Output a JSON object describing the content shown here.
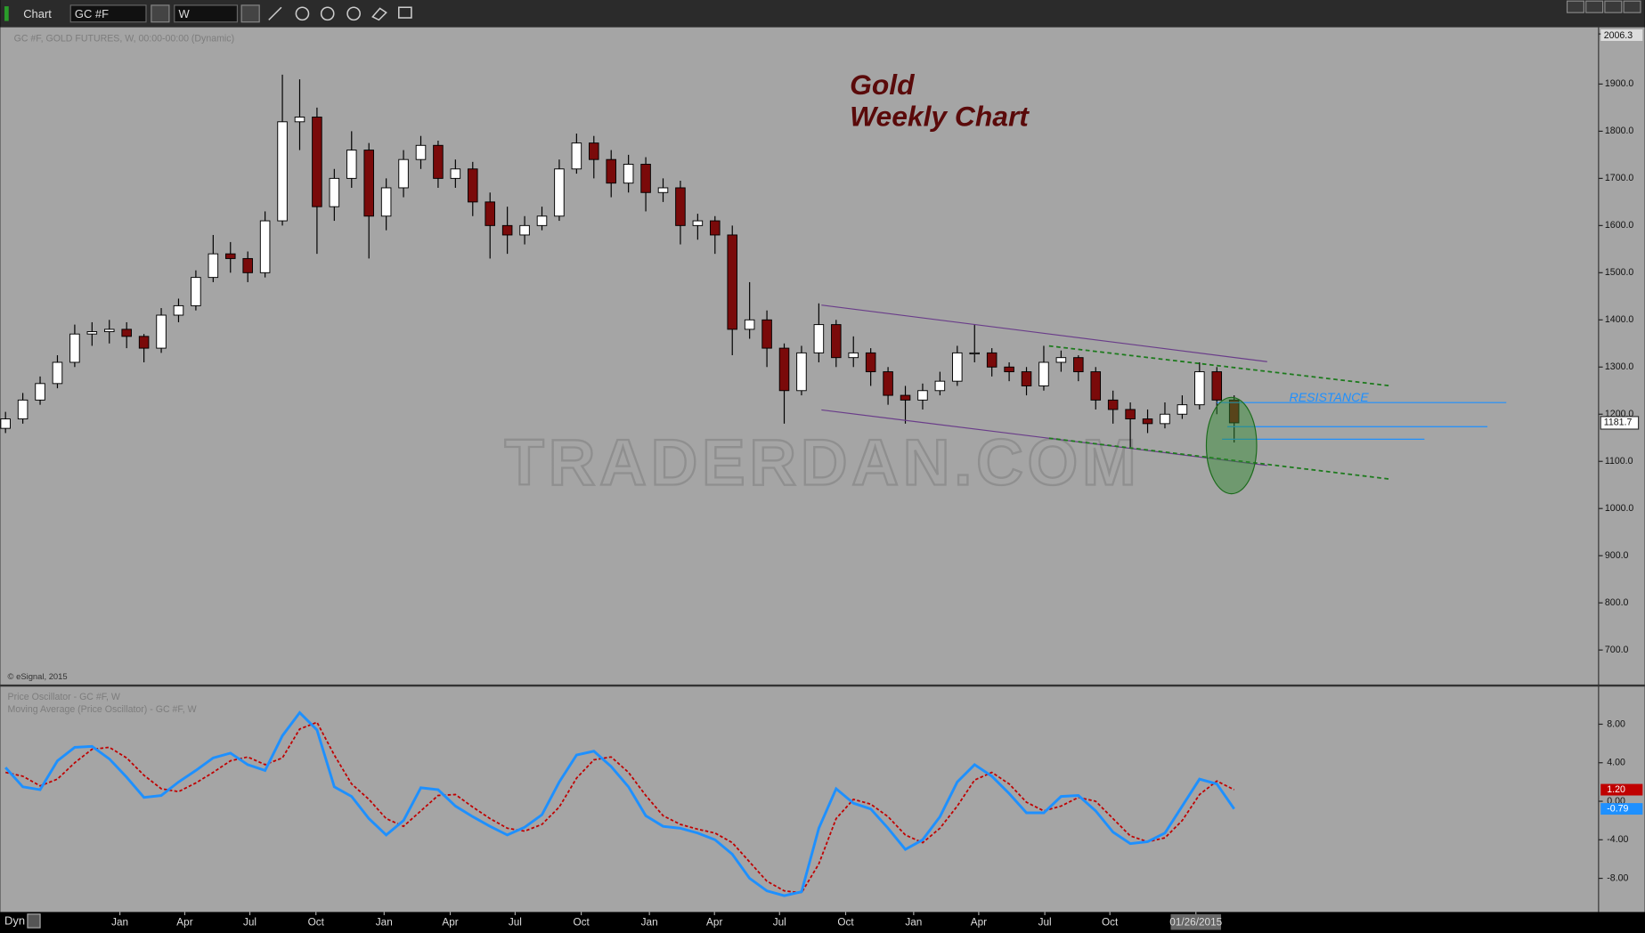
{
  "toolbar": {
    "title": "Chart",
    "symbol": "GC #F",
    "interval": "W"
  },
  "status": {
    "mode": "Dyn"
  },
  "chart_data": [
    {
      "type": "candlestick",
      "title": "Gold",
      "subtitle": "Weekly Chart",
      "info": "GC #F, GOLD FUTURES, W, 00:00-00:00 (Dynamic)",
      "source": "© eSignal, 2015",
      "watermark": "TRADERDAN.COM",
      "annotation": "RESISTANCE",
      "ymax_label": 2006.3,
      "open": [
        1170,
        1190,
        1230,
        1265,
        1310,
        1370,
        1375,
        1380,
        1365,
        1340,
        1410,
        1430,
        1490,
        1540,
        1530,
        1500,
        1610,
        1820,
        1830,
        1640,
        1700,
        1760,
        1620,
        1680,
        1740,
        1770,
        1700,
        1720,
        1650,
        1600,
        1580,
        1600,
        1620,
        1720,
        1775,
        1740,
        1690,
        1730,
        1670,
        1680,
        1600,
        1610,
        1580,
        1380,
        1400,
        1340,
        1250,
        1330,
        1390,
        1320,
        1330,
        1290,
        1240,
        1230,
        1250,
        1270,
        1330,
        1330,
        1300,
        1290,
        1260,
        1310,
        1320,
        1290,
        1230,
        1210,
        1190,
        1180,
        1200,
        1220,
        1290,
        1230
      ],
      "high": [
        1205,
        1245,
        1280,
        1325,
        1390,
        1395,
        1400,
        1395,
        1370,
        1425,
        1445,
        1505,
        1580,
        1565,
        1545,
        1630,
        1920,
        1910,
        1850,
        1720,
        1800,
        1775,
        1700,
        1760,
        1790,
        1780,
        1740,
        1735,
        1670,
        1640,
        1620,
        1640,
        1740,
        1795,
        1790,
        1760,
        1750,
        1745,
        1700,
        1695,
        1625,
        1620,
        1600,
        1480,
        1420,
        1350,
        1345,
        1435,
        1400,
        1365,
        1340,
        1300,
        1260,
        1265,
        1290,
        1345,
        1390,
        1340,
        1310,
        1300,
        1345,
        1335,
        1325,
        1300,
        1250,
        1225,
        1210,
        1225,
        1240,
        1310,
        1300,
        1240
      ],
      "low": [
        1160,
        1180,
        1220,
        1255,
        1300,
        1345,
        1350,
        1340,
        1310,
        1330,
        1395,
        1420,
        1480,
        1500,
        1480,
        1490,
        1600,
        1760,
        1540,
        1610,
        1680,
        1530,
        1590,
        1660,
        1720,
        1680,
        1680,
        1620,
        1530,
        1540,
        1560,
        1590,
        1610,
        1710,
        1700,
        1660,
        1670,
        1630,
        1650,
        1560,
        1570,
        1540,
        1325,
        1360,
        1300,
        1180,
        1240,
        1310,
        1300,
        1300,
        1260,
        1220,
        1180,
        1210,
        1240,
        1260,
        1310,
        1280,
        1270,
        1240,
        1250,
        1290,
        1270,
        1210,
        1180,
        1130,
        1160,
        1170,
        1190,
        1210,
        1200,
        1140
      ],
      "close": [
        1190,
        1230,
        1265,
        1310,
        1370,
        1375,
        1380,
        1365,
        1340,
        1410,
        1430,
        1490,
        1540,
        1530,
        1500,
        1610,
        1820,
        1830,
        1640,
        1700,
        1760,
        1620,
        1680,
        1740,
        1770,
        1700,
        1720,
        1650,
        1600,
        1580,
        1600,
        1620,
        1720,
        1775,
        1740,
        1690,
        1730,
        1670,
        1680,
        1600,
        1610,
        1580,
        1380,
        1400,
        1340,
        1250,
        1330,
        1390,
        1320,
        1330,
        1290,
        1240,
        1230,
        1250,
        1270,
        1330,
        1330,
        1300,
        1290,
        1260,
        1310,
        1320,
        1290,
        1230,
        1210,
        1190,
        1180,
        1200,
        1220,
        1290,
        1230,
        1181.7
      ],
      "up_color": "#ffffff",
      "down_color": "#7a0a0a",
      "xlim": [
        -0.12,
        92.06
      ],
      "ylim": [
        629,
        2016
      ],
      "yticks": [
        {
          "value": 700,
          "label": "700.0"
        },
        {
          "value": 800,
          "label": "800.0"
        },
        {
          "value": 900,
          "label": "900.0"
        },
        {
          "value": 1000,
          "label": "1000.0"
        },
        {
          "value": 1100,
          "label": "1100.0"
        },
        {
          "value": 1200,
          "label": "1200.0"
        },
        {
          "value": 1300,
          "label": "1300.0"
        },
        {
          "value": 1400,
          "label": "1400.0"
        },
        {
          "value": 1500,
          "label": "1500.0"
        },
        {
          "value": 1600,
          "label": "1600.0"
        },
        {
          "value": 1700,
          "label": "1700.0"
        },
        {
          "value": 1800,
          "label": "1800.0"
        },
        {
          "value": 1900,
          "label": "1900.0"
        }
      ]
    },
    {
      "type": "line",
      "series": [
        {
          "name": "Price Oscillator - GC #F, W",
          "color": "#1e90ff",
          "last_label": "-0.79",
          "values": [
            3.5,
            1.5,
            1.2,
            4.2,
            5.6,
            5.7,
            4.4,
            2.5,
            0.4,
            0.6,
            2.0,
            3.2,
            4.5,
            5.0,
            3.8,
            3.2,
            6.8,
            9.2,
            7.4,
            1.5,
            0.5,
            -1.8,
            -3.5,
            -2.0,
            1.4,
            1.2,
            -0.5,
            -1.6,
            -2.6,
            -3.5,
            -2.7,
            -1.4,
            2.0,
            4.8,
            5.2,
            3.6,
            1.5,
            -1.5,
            -2.6,
            -2.8,
            -3.3,
            -4.0,
            -5.5,
            -8.0,
            -9.3,
            -9.8,
            -9.4,
            -2.8,
            1.3,
            -0.2,
            -0.8,
            -2.8,
            -5.0,
            -4.0,
            -1.6,
            2.0,
            3.8,
            2.6,
            0.8,
            -1.2,
            -1.2,
            0.5,
            0.6,
            -1.0,
            -3.2,
            -4.4,
            -4.2,
            -3.3,
            -0.5,
            2.3,
            1.8,
            -0.79
          ]
        },
        {
          "name": "Moving Average (Price Oscillator) - GC #F, W",
          "color": "#c00000",
          "last_label": "1.20",
          "values": [
            3.0,
            2.6,
            1.6,
            2.3,
            4.0,
            5.4,
            5.6,
            4.5,
            2.7,
            1.3,
            1.0,
            1.9,
            3.0,
            4.2,
            4.6,
            3.8,
            4.5,
            7.5,
            8.2,
            4.8,
            1.8,
            0.2,
            -1.8,
            -2.6,
            -1.0,
            0.6,
            0.7,
            -0.6,
            -1.8,
            -2.8,
            -3.1,
            -2.4,
            -0.6,
            2.4,
            4.3,
            4.6,
            3.0,
            0.6,
            -1.5,
            -2.4,
            -2.9,
            -3.3,
            -4.3,
            -6.3,
            -8.3,
            -9.3,
            -9.5,
            -6.5,
            -1.8,
            0.2,
            -0.3,
            -1.6,
            -3.5,
            -4.3,
            -2.8,
            -0.5,
            2.2,
            3.0,
            1.8,
            -0.1,
            -1.0,
            -0.5,
            0.4,
            0.0,
            -1.8,
            -3.6,
            -4.2,
            -3.8,
            -2.0,
            0.7,
            2.1,
            1.2
          ]
        }
      ],
      "xlim": [
        -0.12,
        92.06
      ],
      "ylim": [
        -11.5,
        11.9
      ],
      "yticks": [
        {
          "value": -8,
          "label": "-8.00"
        },
        {
          "value": -4,
          "label": "-4.00"
        },
        {
          "value": 0,
          "label": "0.00"
        },
        {
          "value": 4,
          "label": "4.00"
        },
        {
          "value": 8,
          "label": "8.00"
        }
      ],
      "xticks": [
        {
          "value": 6.61,
          "label": "Jan"
        },
        {
          "value": 10.36,
          "label": "Apr"
        },
        {
          "value": 14.12,
          "label": "Jul"
        },
        {
          "value": 17.94,
          "label": "Oct"
        },
        {
          "value": 21.88,
          "label": "Jan"
        },
        {
          "value": 25.7,
          "label": "Apr"
        },
        {
          "value": 29.45,
          "label": "Jul"
        },
        {
          "value": 33.27,
          "label": "Oct"
        },
        {
          "value": 37.21,
          "label": "Jan"
        },
        {
          "value": 40.97,
          "label": "Apr"
        },
        {
          "value": 44.73,
          "label": "Jul"
        },
        {
          "value": 48.55,
          "label": "Oct"
        },
        {
          "value": 52.48,
          "label": "Jan"
        },
        {
          "value": 56.24,
          "label": "Apr"
        },
        {
          "value": 60.06,
          "label": "Jul"
        },
        {
          "value": 63.82,
          "label": "Oct"
        },
        {
          "value": 68.79,
          "label": "01/26/2015"
        }
      ]
    }
  ]
}
